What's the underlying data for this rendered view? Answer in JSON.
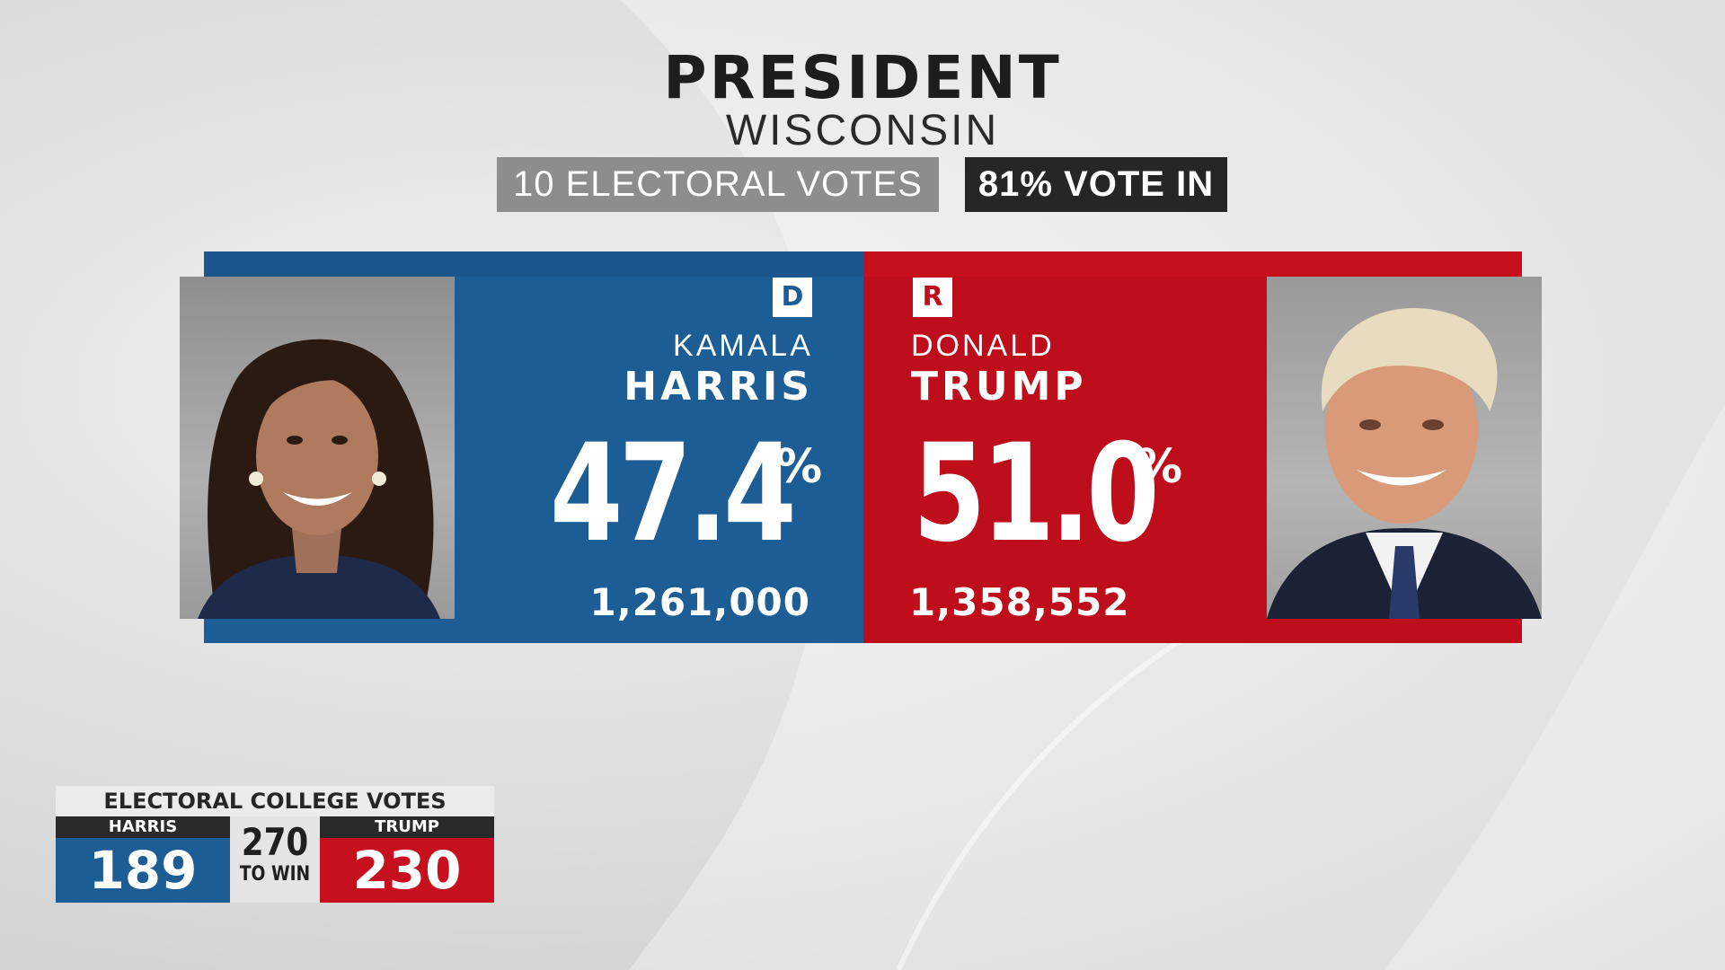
{
  "race": {
    "title": "PRESIDENT",
    "state": "WISCONSIN",
    "electoral_votes": "10 ELECTORAL VOTES",
    "reporting": "81% VOTE IN"
  },
  "candidates": [
    {
      "party": "D",
      "first_name": "KAMALA",
      "last_name": "HARRIS",
      "percent": "47.4",
      "percent_sign": "%",
      "votes": "1,261,000",
      "color": "#1c5d96"
    },
    {
      "party": "R",
      "first_name": "DONALD",
      "last_name": "TRUMP",
      "percent": "51.0",
      "percent_sign": "%",
      "votes": "1,358,552",
      "color": "#be0e1b"
    }
  ],
  "electoral_college": {
    "title": "ELECTORAL COLLEGE VOTES",
    "dem_label": "HARRIS",
    "dem_votes": "189",
    "threshold": "270",
    "threshold_label": "TO WIN",
    "rep_label": "TRUMP",
    "rep_votes": "230"
  },
  "photos": [
    "harris-portrait",
    "trump-portrait"
  ]
}
